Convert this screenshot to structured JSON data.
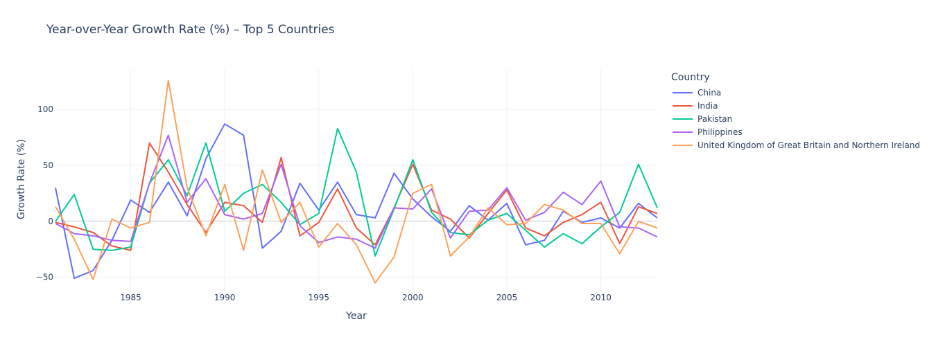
{
  "chart_data": {
    "type": "line",
    "title": "Year-over-Year Growth Rate (%) – Top 5 Countries",
    "xlabel": "Year",
    "ylabel": "Growth Rate (%)",
    "xlim": [
      1981,
      2013
    ],
    "ylim": [
      -62,
      136
    ],
    "x_ticks": [
      1985,
      1990,
      1995,
      2000,
      2005,
      2010
    ],
    "y_ticks": [
      -50,
      0,
      50,
      100
    ],
    "grid": true,
    "legend_title": "Country",
    "legend_position": "right",
    "x": [
      1981,
      1982,
      1983,
      1984,
      1985,
      1986,
      1987,
      1988,
      1989,
      1990,
      1991,
      1992,
      1993,
      1994,
      1995,
      1996,
      1997,
      1998,
      1999,
      2000,
      2001,
      2002,
      2003,
      2004,
      2005,
      2006,
      2007,
      2008,
      2009,
      2010,
      2011,
      2012,
      2013
    ],
    "series": [
      {
        "name": "China",
        "color": "#636efa",
        "values": [
          30,
          -51,
          -44,
          -17,
          19,
          8,
          35,
          5,
          56,
          87,
          77,
          -24,
          -9,
          34,
          10,
          35,
          6,
          3,
          43,
          20,
          4,
          -9,
          14,
          1,
          16,
          -21,
          -17,
          9,
          -1,
          3,
          -6,
          16,
          3
        ]
      },
      {
        "name": "India",
        "color": "#EF553B",
        "values": [
          -1,
          -5,
          -10,
          -22,
          -26,
          70,
          44,
          15,
          -10,
          17,
          14,
          -1,
          57,
          -13,
          -1,
          29,
          -6,
          -21,
          12,
          51,
          10,
          2,
          -15,
          7,
          28,
          -6,
          -13,
          -1,
          6,
          17,
          -20,
          13,
          7
        ]
      },
      {
        "name": "Pakistan",
        "color": "#00cc96",
        "values": [
          0,
          24,
          -25,
          -26,
          -23,
          34,
          55,
          23,
          70,
          9,
          25,
          33,
          17,
          -3,
          7,
          83,
          44,
          -31,
          11,
          55,
          8,
          -10,
          -12,
          1,
          7,
          -8,
          -23,
          -11,
          -20,
          -5,
          8,
          51,
          12
        ]
      },
      {
        "name": "Philippines",
        "color": "#ab63fa",
        "values": [
          -2,
          -11,
          -13,
          -17,
          -18,
          34,
          77,
          17,
          38,
          6,
          2,
          7,
          51,
          -4,
          -19,
          -14,
          -16,
          -24,
          12,
          11,
          29,
          -15,
          9,
          10,
          30,
          1,
          8,
          26,
          15,
          36,
          -5,
          -6,
          -14
        ]
      },
      {
        "name": "United Kingdom of Great Britain and Northern Ireland",
        "color": "#FFA15A",
        "values": [
          13,
          -16,
          -52,
          2,
          -6,
          -1,
          126,
          30,
          -13,
          33,
          -26,
          46,
          -1,
          17,
          -23,
          -2,
          -21,
          -55,
          -32,
          25,
          33,
          -31,
          -14,
          12,
          -3,
          -2,
          15,
          10,
          -2,
          -2,
          -29,
          0,
          -6
        ]
      }
    ]
  }
}
